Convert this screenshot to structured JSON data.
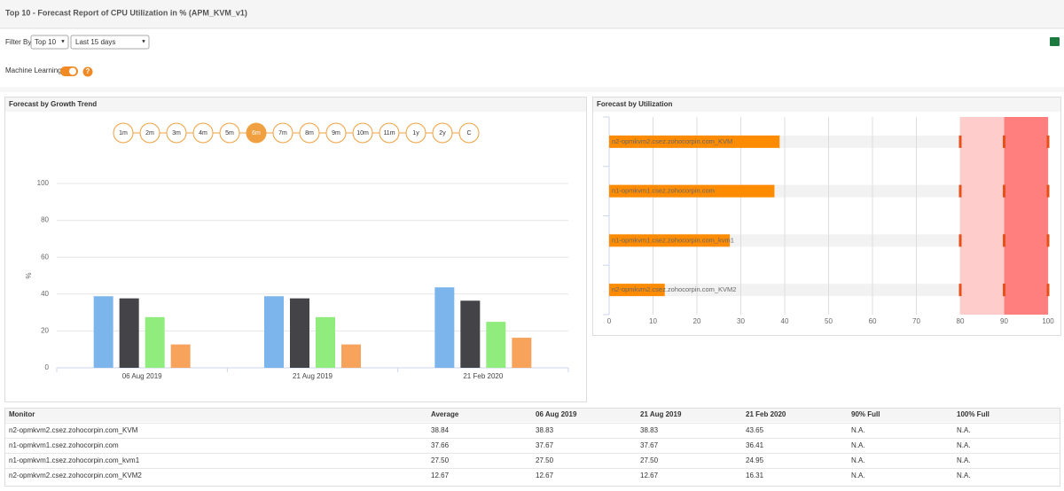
{
  "header": {
    "title": "Top 10 - Forecast Report of CPU Utilization in % (APM_KVM_v1)"
  },
  "filter": {
    "label": "Filter By",
    "top": "Top 10",
    "range": "Last 15 days"
  },
  "ml": {
    "label": "Machine Learning",
    "help": "?"
  },
  "panels": {
    "left": "Forecast by Growth Trend",
    "right": "Forecast by Utilization"
  },
  "periods": {
    "labels": [
      "1m",
      "2m",
      "3m",
      "4m",
      "5m",
      "6m",
      "7m",
      "8m",
      "9m",
      "10m",
      "11m",
      "1y",
      "2y",
      "C"
    ],
    "selected": 5
  },
  "chart_data": [
    {
      "type": "bar",
      "ylabel": "%",
      "categories": [
        "06 Aug 2019",
        "21 Aug 2019",
        "21 Feb 2020"
      ],
      "series": [
        {
          "color": "#7cb5ec",
          "values": [
            38.83,
            38.83,
            43.65
          ]
        },
        {
          "color": "#434348",
          "values": [
            37.67,
            37.67,
            36.41
          ]
        },
        {
          "color": "#90ed7d",
          "values": [
            27.5,
            27.5,
            24.95
          ]
        },
        {
          "color": "#f7a35c",
          "values": [
            12.67,
            12.67,
            16.31
          ]
        }
      ],
      "ylim": [
        0,
        100
      ],
      "yticks": [
        0,
        20,
        40,
        60,
        80,
        100
      ],
      "grid": true
    },
    {
      "type": "hbar",
      "categories": [
        "n2-opmkvm2.csez.zohocorpin.com_KVM",
        "n1-opmkvm1.csez.zohocorpin.com",
        "n1-opmkvm1.csez.zohocorpin.com_kvm1",
        "n2-opmkvm2.csez.zohocorpin.com_KVM2"
      ],
      "values": [
        38.84,
        37.66,
        27.5,
        12.67
      ],
      "color": "#ff8c00",
      "xlim": [
        0,
        100
      ],
      "xticks": [
        0,
        10,
        20,
        30,
        40,
        50,
        60,
        70,
        80,
        90,
        100
      ],
      "grid": true,
      "bands": [
        {
          "from": 80,
          "to": 90,
          "color": "#ffcccc"
        },
        {
          "from": 90,
          "to": 100,
          "color": "#ff7f7f"
        }
      ]
    }
  ],
  "table": {
    "columns": [
      "Monitor",
      "Average",
      "06 Aug 2019",
      "21 Aug 2019",
      "21 Feb 2020",
      "90% Full",
      "100% Full"
    ],
    "rows": [
      [
        "n2-opmkvm2.csez.zohocorpin.com_KVM",
        "38.84",
        "38.83",
        "38.83",
        "43.65",
        "N.A.",
        "N.A."
      ],
      [
        "n1-opmkvm1.csez.zohocorpin.com",
        "37.66",
        "37.67",
        "37.67",
        "36.41",
        "N.A.",
        "N.A."
      ],
      [
        "n1-opmkvm1.csez.zohocorpin.com_kvm1",
        "27.50",
        "27.50",
        "27.50",
        "24.95",
        "N.A.",
        "N.A."
      ],
      [
        "n2-opmkvm2.csez.zohocorpin.com_KVM2",
        "12.67",
        "12.67",
        "12.67",
        "16.31",
        "N.A.",
        "N.A."
      ]
    ]
  }
}
